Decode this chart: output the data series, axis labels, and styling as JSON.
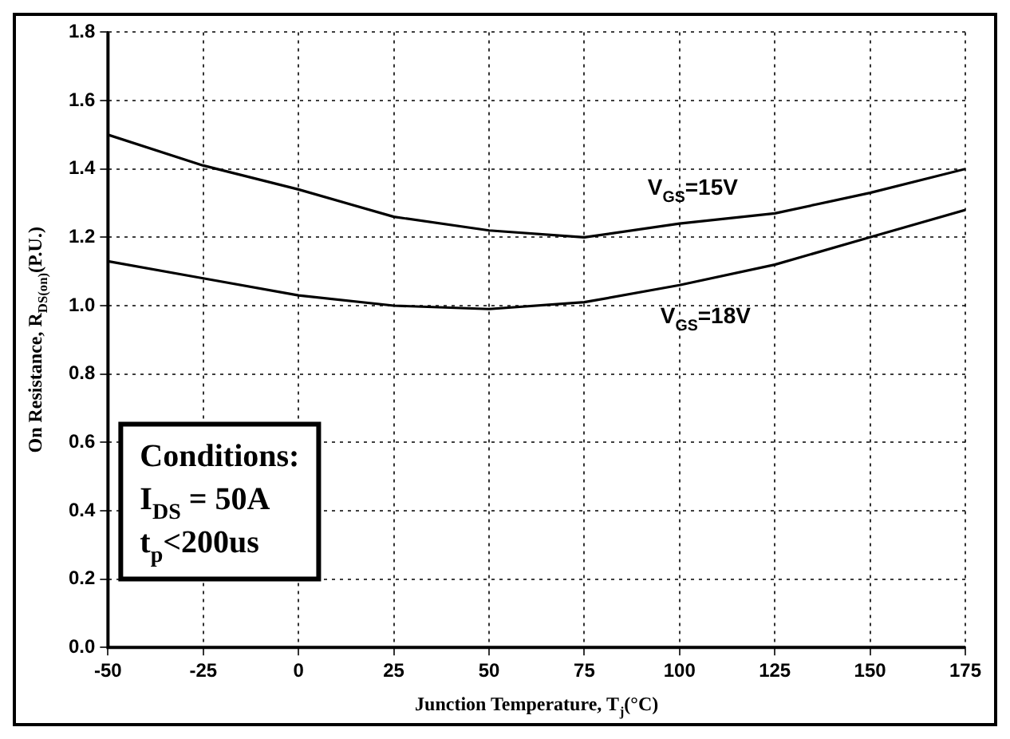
{
  "chart_data": {
    "type": "line",
    "xlabel": "Junction Temperature, T$_{j}$(°C)",
    "ylabel": "On Resistance, R$_{DS(on)}$(P.U.)",
    "x": [
      -50,
      -25,
      0,
      25,
      50,
      75,
      100,
      125,
      150,
      175
    ],
    "series": [
      {
        "name": "V$_{GS}$=15V",
        "color": "#000000",
        "values": [
          1.5,
          1.41,
          1.34,
          1.26,
          1.22,
          1.2,
          1.24,
          1.27,
          1.33,
          1.4
        ]
      },
      {
        "name": "V$_{GS}$=18V",
        "color": "#000000",
        "values": [
          1.13,
          1.08,
          1.03,
          1.0,
          0.99,
          1.01,
          1.06,
          1.12,
          1.2,
          1.28
        ]
      }
    ],
    "xlim": [
      -50,
      175
    ],
    "xticks": [
      -50,
      -25,
      0,
      25,
      50,
      75,
      100,
      125,
      150,
      175
    ],
    "ylim": [
      0,
      1.8
    ],
    "yticks": [
      {
        "value": 0,
        "label": "0.0"
      },
      {
        "value": 0.2,
        "label": "0.2"
      },
      {
        "value": 0.4,
        "label": "0.4"
      },
      {
        "value": 0.6,
        "label": "0.6"
      },
      {
        "value": 0.8,
        "label": "0.8"
      },
      {
        "value": 1,
        "label": "1.0"
      },
      {
        "value": 1.2,
        "label": "1.2"
      },
      {
        "value": 1.4,
        "label": "1.4"
      },
      {
        "value": 1.6,
        "label": "1.6"
      },
      {
        "value": 1.8,
        "label": "1.8"
      }
    ],
    "grid": true,
    "legend": false,
    "marker": "none",
    "line_style": "solid",
    "annotations": [
      "Conditions:",
      "I$_{DS}$ = 50A",
      "t$_{p}$<200us"
    ]
  }
}
